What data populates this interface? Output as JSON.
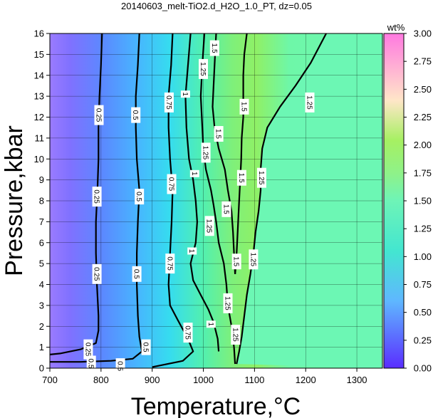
{
  "chart_data": {
    "type": "heatmap",
    "title": "20140603_melt-TiO2.d_H2O_1.0_PT, dz=0.05",
    "xlabel": "Temperature,°C",
    "ylabel": "Pressure,kbar",
    "xlim": [
      700,
      1350
    ],
    "ylim": [
      0,
      16
    ],
    "x_ticks": [
      700,
      800,
      900,
      1000,
      1100,
      1200,
      1300
    ],
    "y_ticks": [
      0,
      1,
      2,
      3,
      4,
      5,
      6,
      7,
      8,
      9,
      10,
      11,
      12,
      13,
      14,
      15,
      16
    ],
    "grid": true,
    "colorbar": {
      "label": "wt%",
      "range": [
        0.0,
        3.0
      ],
      "ticks": [
        "0.00",
        "0.25",
        "0.50",
        "0.75",
        "1.00",
        "1.25",
        "1.50",
        "1.75",
        "2.00",
        "2.25",
        "2.50",
        "2.75",
        "3.00"
      ]
    },
    "contour_levels": [
      0.25,
      0.5,
      0.75,
      1.0,
      1.25,
      1.5
    ],
    "contours": [
      {
        "level": 0.25,
        "points": [
          [
            802,
            16
          ],
          [
            800,
            14.5
          ],
          [
            797,
            13
          ],
          [
            795,
            11.5
          ],
          [
            795,
            10
          ],
          [
            793,
            8.5
          ],
          [
            790,
            7
          ],
          [
            790,
            5.5
          ],
          [
            792,
            4
          ],
          [
            795,
            2.5
          ],
          [
            795,
            1.8
          ],
          [
            790,
            1.2
          ],
          [
            760,
            0.9
          ],
          [
            720,
            0.7
          ],
          [
            700,
            0.65
          ]
        ]
      },
      {
        "level": 0.5,
        "points": [
          [
            875,
            16
          ],
          [
            872,
            14.5
          ],
          [
            868,
            13
          ],
          [
            868,
            11.5
          ],
          [
            870,
            10
          ],
          [
            875,
            8.5
          ],
          [
            872,
            7
          ],
          [
            870,
            5.5
          ],
          [
            870,
            4
          ],
          [
            872,
            2.5
          ],
          [
            875,
            1.5
          ],
          [
            880,
            0.8
          ],
          [
            862,
            0.45
          ],
          [
            820,
            0.35
          ],
          [
            760,
            0.3
          ],
          [
            700,
            0.3
          ]
        ]
      },
      {
        "level": 0.75,
        "points": [
          [
            940,
            16
          ],
          [
            937,
            14.5
          ],
          [
            932,
            13
          ],
          [
            932,
            11.5
          ],
          [
            935,
            10
          ],
          [
            940,
            8.5
          ],
          [
            938,
            7
          ],
          [
            935,
            5.5
          ],
          [
            932,
            4
          ],
          [
            935,
            3
          ],
          [
            950,
            2.3
          ],
          [
            970,
            1.4
          ],
          [
            980,
            0.8
          ],
          [
            960,
            0.35
          ],
          [
            920,
            0.15
          ],
          [
            900,
            0.05
          ]
        ]
      },
      {
        "level": 1.0,
        "points": [
          [
            975,
            16
          ],
          [
            970,
            14.5
          ],
          [
            965,
            13
          ],
          [
            967,
            11.5
          ],
          [
            972,
            10
          ],
          [
            980,
            9
          ],
          [
            985,
            8
          ],
          [
            988,
            7
          ],
          [
            985,
            6
          ],
          [
            975,
            5
          ],
          [
            980,
            4.2
          ],
          [
            995,
            3.5
          ],
          [
            1010,
            2.8
          ],
          [
            1020,
            2.2
          ],
          [
            1028,
            1.4
          ],
          [
            1030,
            0.8
          ]
        ]
      },
      {
        "level": 1.25,
        "points": [
          [
            1002,
            16
          ],
          [
            998,
            14.5
          ],
          [
            995,
            13
          ],
          [
            998,
            11.5
          ],
          [
            1000,
            10.5
          ],
          [
            1005,
            9.5
          ],
          [
            1015,
            8.5
          ],
          [
            1020,
            7.8
          ],
          [
            1025,
            7
          ],
          [
            1030,
            6
          ],
          [
            1040,
            5
          ],
          [
            1045,
            4
          ],
          [
            1048,
            3
          ],
          [
            1055,
            2
          ],
          [
            1060,
            1
          ],
          [
            1062,
            0.2
          ]
        ]
      },
      {
        "level": 1.5,
        "points": [
          [
            1025,
            16
          ],
          [
            1022,
            14.5
          ],
          [
            1020,
            13.5
          ],
          [
            1018,
            12.5
          ],
          [
            1022,
            11.5
          ],
          [
            1030,
            10.5
          ],
          [
            1042,
            9.5
          ],
          [
            1048,
            8.5
          ],
          [
            1055,
            7.5
          ],
          [
            1058,
            6.5
          ],
          [
            1060,
            5.5
          ],
          [
            1062,
            4.5
          ]
        ]
      },
      {
        "level": 1.5,
        "points": [
          [
            1085,
            16
          ],
          [
            1080,
            15
          ],
          [
            1078,
            14
          ],
          [
            1078,
            13
          ],
          [
            1078,
            12
          ],
          [
            1075,
            11
          ],
          [
            1074,
            10
          ],
          [
            1072,
            9
          ],
          [
            1070,
            8
          ],
          [
            1068,
            7
          ],
          [
            1066,
            6
          ],
          [
            1064,
            5
          ],
          [
            1062,
            4.5
          ]
        ]
      },
      {
        "level": 1.25,
        "points": [
          [
            1240,
            16
          ],
          [
            1210,
            14.6
          ],
          [
            1180,
            13.5
          ],
          [
            1150,
            12.5
          ],
          [
            1125,
            11.5
          ],
          [
            1115,
            10.5
          ],
          [
            1112,
            9.5
          ],
          [
            1112,
            8.5
          ],
          [
            1108,
            7.5
          ],
          [
            1102,
            6.5
          ],
          [
            1098,
            5.5
          ],
          [
            1092,
            4.5
          ],
          [
            1085,
            3.5
          ],
          [
            1080,
            2.5
          ],
          [
            1075,
            1.5
          ],
          [
            1070,
            0.8
          ],
          [
            1065,
            0.2
          ]
        ]
      }
    ],
    "contour_labels": [
      {
        "text": "0.25",
        "x": 796,
        "y": 12.1
      },
      {
        "text": "0.25",
        "x": 792,
        "y": 8.2
      },
      {
        "text": "0.25",
        "x": 792,
        "y": 4.5
      },
      {
        "text": "0.25",
        "x": 775,
        "y": 0.9
      },
      {
        "text": "0.5",
        "x": 868,
        "y": 12.1
      },
      {
        "text": "0.5",
        "x": 875,
        "y": 8.2
      },
      {
        "text": "0.5",
        "x": 870,
        "y": 4.5
      },
      {
        "text": "0.5",
        "x": 888,
        "y": 1.0
      },
      {
        "text": "0.5",
        "x": 781,
        "y": 0.22
      },
      {
        "text": "0.5",
        "x": 838,
        "y": 0.1
      },
      {
        "text": "0.75",
        "x": 933,
        "y": 12.7
      },
      {
        "text": "0.75",
        "x": 938,
        "y": 8.8
      },
      {
        "text": "0.75",
        "x": 935,
        "y": 5.0
      },
      {
        "text": "0.75",
        "x": 970,
        "y": 1.7
      },
      {
        "text": "1",
        "x": 965,
        "y": 13.1
      },
      {
        "text": "1",
        "x": 983,
        "y": 9.3
      },
      {
        "text": "1",
        "x": 978,
        "y": 5.6
      },
      {
        "text": "1",
        "x": 1015,
        "y": 2.1
      },
      {
        "text": "1.25",
        "x": 1000,
        "y": 14.3
      },
      {
        "text": "1.25",
        "x": 1005,
        "y": 10.3
      },
      {
        "text": "1.25",
        "x": 1012,
        "y": 6.8
      },
      {
        "text": "1.25",
        "x": 1048,
        "y": 3.1
      },
      {
        "text": "1.25",
        "x": 1063,
        "y": 1.6
      },
      {
        "text": "1.25",
        "x": 1208,
        "y": 12.7
      },
      {
        "text": "1.25",
        "x": 1114,
        "y": 9.1
      },
      {
        "text": "1.25",
        "x": 1098,
        "y": 5.2
      },
      {
        "text": "1.5",
        "x": 1022,
        "y": 15.3
      },
      {
        "text": "1.5",
        "x": 1030,
        "y": 11.2
      },
      {
        "text": "1.5",
        "x": 1045,
        "y": 7.6
      },
      {
        "text": "1.5",
        "x": 1080,
        "y": 12.5
      },
      {
        "text": "1.5",
        "x": 1075,
        "y": 9.1
      },
      {
        "text": "1.5",
        "x": 1065,
        "y": 5.1
      }
    ]
  }
}
